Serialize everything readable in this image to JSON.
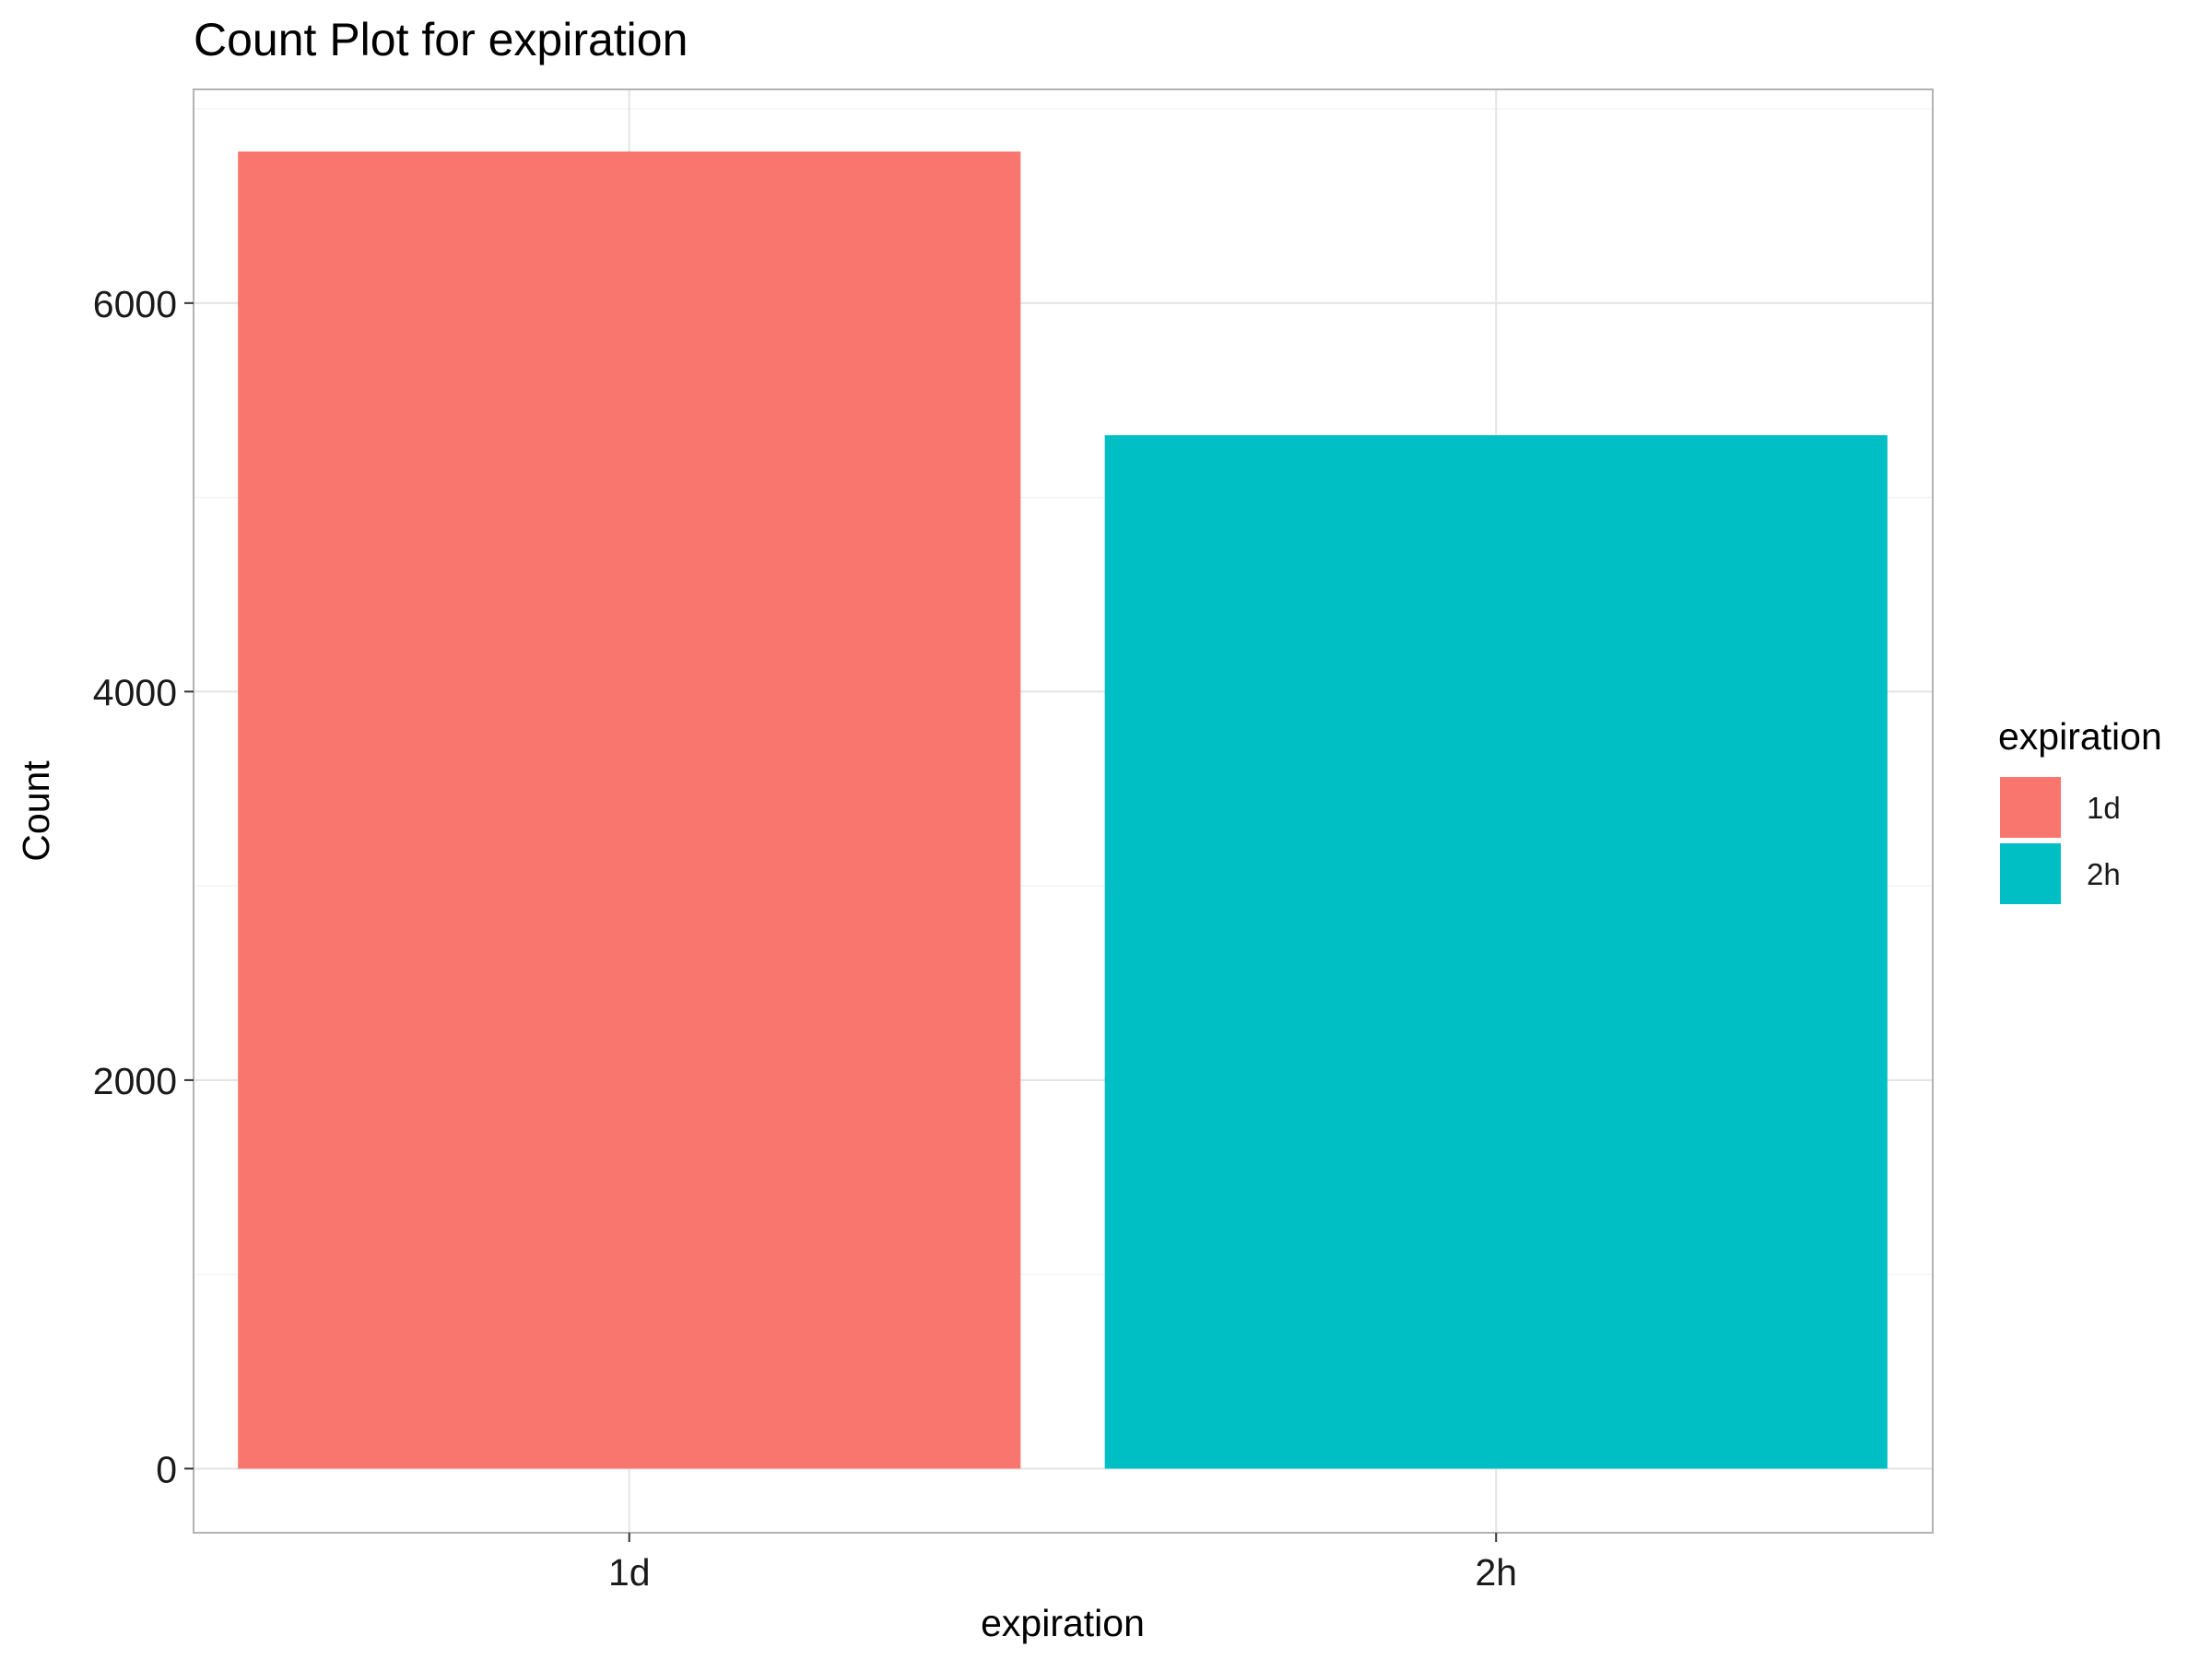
{
  "chart_data": {
    "type": "bar",
    "title": "Count Plot for expiration",
    "xlabel": "expiration",
    "ylabel": "Count",
    "categories": [
      "1d",
      "2h"
    ],
    "values": [
      6780,
      5320
    ],
    "colors": [
      "#F8766D",
      "#00BFC4"
    ],
    "ylim": [
      -330,
      7100
    ],
    "yticks": [
      0,
      2000,
      4000,
      6000
    ],
    "grid": true,
    "legend": {
      "title": "expiration",
      "position": "right",
      "items": [
        {
          "label": "1d",
          "color": "#F8766D"
        },
        {
          "label": "2h",
          "color": "#00BFC4"
        }
      ]
    }
  }
}
